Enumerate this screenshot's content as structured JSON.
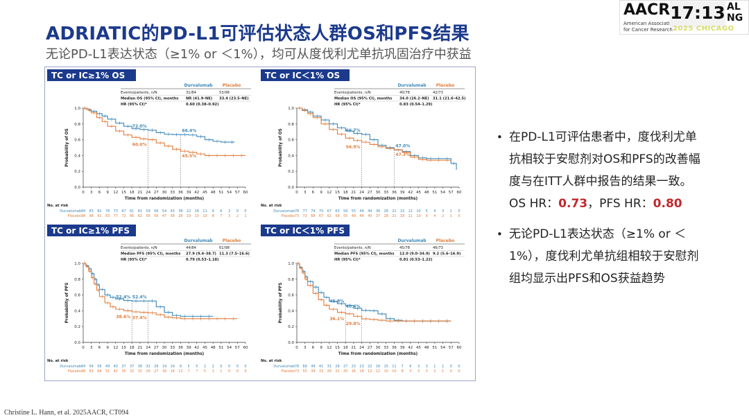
{
  "header": {
    "title": "ADRIATIC的PD-L1可评估状态人群OS和PFS结果",
    "subtitle": "无论PD-L1表达状态（≥1% or ＜1%），均可从度伐利尤单抗巩固治疗中获益"
  },
  "logo": {
    "brand": "AACR",
    "line1": "American Association",
    "line2": "for Cancer Research",
    "alng": "AL\nNG",
    "year": "2025 CHICAGO",
    "clock": "17:13"
  },
  "colors": {
    "durvalumab": "#3a86b8",
    "placebo": "#e07b39",
    "title": "#1b3a8c",
    "highlight": "#c0282d"
  },
  "chart_data": [
    {
      "type": "line",
      "title": "TC or IC≥1% OS",
      "xlabel": "Time from randomization (months)",
      "ylabel": "Probability of OS",
      "xlim": [
        0,
        60
      ],
      "ylim": [
        0,
        1.0
      ],
      "xticks": [
        0,
        3,
        6,
        9,
        12,
        15,
        18,
        21,
        24,
        27,
        30,
        33,
        36,
        39,
        42,
        45,
        48,
        51,
        54,
        57,
        60
      ],
      "yticks": [
        0,
        0.2,
        0.4,
        0.6,
        0.8,
        1.0
      ],
      "table": {
        "head": [
          "",
          "Durvalumab",
          "Placebo"
        ],
        "rows": [
          [
            "Events/patients, n/N",
            "31/84",
            "53/98"
          ],
          [
            "Median OS (95% CI), months",
            "NR (41.9–NE)",
            "33.4 (23.5–NE)"
          ],
          [
            "HR (95% CI)*",
            "0.60 (0.38–0.92)",
            ""
          ]
        ]
      },
      "annotations": [
        {
          "text": "72.0%",
          "x": 24,
          "y": 0.72,
          "series": "Durvalumab"
        },
        {
          "text": "66.4%",
          "x": 36,
          "y": 0.664,
          "series": "Durvalumab"
        },
        {
          "text": "60.0%",
          "x": 24,
          "y": 0.6,
          "series": "Placebo"
        },
        {
          "text": "45.5%",
          "x": 36,
          "y": 0.455,
          "series": "Placebo"
        }
      ],
      "series": [
        {
          "name": "Durvalumab",
          "x": [
            0,
            1,
            2,
            3,
            5,
            7,
            9,
            12,
            15,
            18,
            21,
            24,
            27,
            30,
            33,
            36,
            39,
            42,
            45,
            48,
            51,
            54,
            56
          ],
          "y": [
            1.0,
            0.99,
            0.98,
            0.96,
            0.93,
            0.9,
            0.86,
            0.81,
            0.77,
            0.74,
            0.73,
            0.72,
            0.69,
            0.67,
            0.665,
            0.664,
            0.66,
            0.64,
            0.6,
            0.58,
            0.57,
            0.57,
            0.57
          ]
        },
        {
          "name": "Placebo",
          "x": [
            0,
            1,
            2,
            3,
            5,
            7,
            9,
            12,
            15,
            18,
            21,
            24,
            27,
            30,
            33,
            36,
            39,
            42,
            45,
            48,
            51,
            54,
            57,
            60
          ],
          "y": [
            1.0,
            0.99,
            0.97,
            0.94,
            0.88,
            0.83,
            0.77,
            0.71,
            0.66,
            0.63,
            0.61,
            0.6,
            0.56,
            0.52,
            0.48,
            0.455,
            0.44,
            0.42,
            0.4,
            0.4,
            0.4,
            0.4,
            0.4,
            0.4
          ]
        }
      ],
      "risk": {
        "label": "No. at risk",
        "rows": [
          {
            "name": "Durvalumab",
            "values": [
              84,
              83,
              82,
              76,
              73,
              67,
              61,
              61,
              59,
              56,
              54,
              43,
              38,
              22,
              16,
              11,
              9,
              6,
              2,
              0,
              0
            ]
          },
          {
            "name": "Placebo",
            "values": [
              98,
              96,
              91,
              83,
              77,
              72,
              66,
              62,
              56,
              56,
              47,
              38,
              28,
              19,
              13,
              10,
              8,
              7,
              3,
              2,
              1
            ]
          }
        ]
      }
    },
    {
      "type": "line",
      "title": "TC or IC＜1% OS",
      "xlabel": "Time from randomization (months)",
      "ylabel": "Probability of OS",
      "xlim": [
        0,
        60
      ],
      "ylim": [
        0,
        1.0
      ],
      "xticks": [
        0,
        3,
        6,
        9,
        12,
        15,
        18,
        21,
        24,
        27,
        30,
        33,
        36,
        39,
        42,
        45,
        48,
        51,
        54,
        57,
        60
      ],
      "yticks": [
        0,
        0.2,
        0.4,
        0.6,
        0.8,
        1.0
      ],
      "table": {
        "head": [
          "",
          "Durvalumab",
          "Placebo"
        ],
        "rows": [
          [
            "Events/patients, n/N",
            "40/78",
            "42/73"
          ],
          [
            "Median OS (95% CI), months",
            "34.0 (26.2–NE)",
            "31.1 (21.6–42.5)"
          ],
          [
            "HR (95% CI)*",
            "0.83 (0.54–1.29)",
            ""
          ]
        ]
      },
      "annotations": [
        {
          "text": "66.7%",
          "x": 24,
          "y": 0.667,
          "series": "Durvalumab"
        },
        {
          "text": "47.0%",
          "x": 36,
          "y": 0.47,
          "series": "Durvalumab"
        },
        {
          "text": "56.9%",
          "x": 24,
          "y": 0.569,
          "series": "Placebo"
        },
        {
          "text": "47.3%",
          "x": 36,
          "y": 0.473,
          "series": "Placebo"
        }
      ],
      "series": [
        {
          "name": "Durvalumab",
          "x": [
            0,
            2,
            4,
            6,
            9,
            12,
            15,
            18,
            21,
            24,
            27,
            30,
            33,
            36,
            39,
            42,
            45,
            48,
            51,
            54,
            57,
            59
          ],
          "y": [
            1.0,
            0.98,
            0.95,
            0.9,
            0.85,
            0.8,
            0.75,
            0.71,
            0.68,
            0.667,
            0.6,
            0.53,
            0.5,
            0.47,
            0.45,
            0.4,
            0.37,
            0.36,
            0.36,
            0.36,
            0.3,
            0.22
          ]
        },
        {
          "name": "Placebo",
          "x": [
            0,
            2,
            4,
            6,
            9,
            12,
            15,
            18,
            21,
            24,
            27,
            30,
            33,
            36,
            39,
            42,
            45,
            48,
            51,
            54,
            57
          ],
          "y": [
            1.0,
            0.97,
            0.93,
            0.88,
            0.8,
            0.73,
            0.67,
            0.62,
            0.59,
            0.569,
            0.54,
            0.51,
            0.49,
            0.473,
            0.44,
            0.38,
            0.35,
            0.34,
            0.34,
            0.34,
            0.34
          ]
        }
      ],
      "risk": {
        "label": "No. at risk",
        "rows": [
          {
            "name": "Durvalumab",
            "values": [
              78,
              77,
              74,
              70,
              67,
              63,
              59,
              55,
              49,
              44,
              36,
              28,
              21,
              15,
              12,
              10,
              5,
              4,
              3,
              1,
              0
            ]
          },
          {
            "name": "Placebo",
            "values": [
              73,
              72,
              68,
              67,
              62,
              59,
              55,
              49,
              46,
              40,
              37,
              28,
              21,
              18,
              11,
              10,
              9,
              4,
              2,
              1,
              0
            ]
          }
        ]
      }
    },
    {
      "type": "line",
      "title": "TC or IC≥1% PFS",
      "xlabel": "Time from randomization (months)",
      "ylabel": "Probability of PFS",
      "xlim": [
        0,
        60
      ],
      "ylim": [
        0,
        1.0
      ],
      "xticks": [
        0,
        3,
        6,
        9,
        12,
        15,
        18,
        21,
        24,
        27,
        30,
        33,
        36,
        39,
        42,
        45,
        48,
        51,
        54,
        57,
        60
      ],
      "yticks": [
        0,
        0.2,
        0.4,
        0.6,
        0.8,
        1.0
      ],
      "table": {
        "head": [
          "",
          "Durvalumab",
          "Placebo"
        ],
        "rows": [
          [
            "Events/patients, n/N",
            "44/84",
            "61/98"
          ],
          [
            "Median PFS (95% CI), months",
            "27.9 (9.4–38.7)",
            "11.3 (7.5–16.6)"
          ],
          [
            "HR (95% CI)*",
            "0.79 (0.53–1.18)",
            ""
          ]
        ]
      },
      "annotations": [
        {
          "text": "52.4%",
          "x": 18,
          "y": 0.524,
          "series": "Durvalumab"
        },
        {
          "text": "52.4%",
          "x": 24,
          "y": 0.524,
          "series": "Durvalumab"
        },
        {
          "text": "38.6%",
          "x": 18,
          "y": 0.386,
          "series": "Placebo"
        },
        {
          "text": "37.4%",
          "x": 24,
          "y": 0.374,
          "series": "Placebo"
        }
      ],
      "series": [
        {
          "name": "Durvalumab",
          "x": [
            0,
            1,
            2,
            3,
            4,
            5,
            6,
            8,
            10,
            12,
            15,
            18,
            21,
            24,
            27,
            30,
            33,
            36,
            39,
            42,
            45,
            48
          ],
          "y": [
            1.0,
            0.97,
            0.93,
            0.87,
            0.8,
            0.73,
            0.67,
            0.6,
            0.57,
            0.55,
            0.53,
            0.524,
            0.524,
            0.524,
            0.45,
            0.38,
            0.34,
            0.33,
            0.33,
            0.33,
            0.33,
            0.33
          ]
        },
        {
          "name": "Placebo",
          "x": [
            0,
            1,
            2,
            3,
            4,
            5,
            6,
            8,
            10,
            12,
            15,
            18,
            21,
            24,
            27,
            30,
            33,
            36,
            39,
            42,
            45,
            48,
            51,
            54,
            57
          ],
          "y": [
            1.0,
            0.96,
            0.9,
            0.82,
            0.74,
            0.66,
            0.58,
            0.5,
            0.45,
            0.42,
            0.4,
            0.386,
            0.38,
            0.374,
            0.35,
            0.32,
            0.31,
            0.3,
            0.3,
            0.3,
            0.3,
            0.3,
            0.3,
            0.3,
            0.3
          ]
        }
      ],
      "risk": {
        "label": "No. at risk",
        "rows": [
          {
            "name": "Durvalumab",
            "values": [
              84,
              56,
              56,
              49,
              40,
              37,
              37,
              36,
              32,
              29,
              19,
              19,
              9,
              5,
              5,
              2,
              2,
              0,
              0,
              0,
              0
            ]
          },
          {
            "name": "Placebo",
            "values": [
              98,
              81,
              64,
              51,
              42,
              35,
              32,
              31,
              26,
              27,
              16,
              16,
              12,
              7,
              7,
              5,
              1,
              1,
              0,
              0,
              0
            ]
          }
        ]
      }
    },
    {
      "type": "line",
      "title": "TC or IC＜1% PFS",
      "xlabel": "Time from randomization (months)",
      "ylabel": "Probability of PFS",
      "xlim": [
        0,
        60
      ],
      "ylim": [
        0,
        1.0
      ],
      "xticks": [
        0,
        3,
        6,
        9,
        12,
        15,
        18,
        21,
        24,
        27,
        30,
        33,
        36,
        39,
        42,
        45,
        48,
        51,
        54,
        57,
        60
      ],
      "yticks": [
        0,
        0.2,
        0.4,
        0.6,
        0.8,
        1.0
      ],
      "table": {
        "head": [
          "",
          "Durvalumab",
          "Placebo"
        ],
        "rows": [
          [
            "Events/patients, n/N",
            "45/78",
            "46/73"
          ],
          [
            "Median PFS (95% CI), months",
            "12.0 (9.0–34.9)",
            "9.2 (5.6–16.9)"
          ],
          [
            "HR (95% CI)*",
            "0.81 (0.53–1.22)",
            ""
          ]
        ]
      },
      "annotations": [
        {
          "text": "46.8%",
          "x": 18,
          "y": 0.468,
          "series": "Durvalumab"
        },
        {
          "text": "40.4%",
          "x": 24,
          "y": 0.404,
          "series": "Durvalumab"
        },
        {
          "text": "36.1%",
          "x": 18,
          "y": 0.361,
          "series": "Placebo"
        },
        {
          "text": "29.8%",
          "x": 24,
          "y": 0.298,
          "series": "Placebo"
        }
      ],
      "series": [
        {
          "name": "Durvalumab",
          "x": [
            0,
            1,
            2,
            3,
            4,
            6,
            8,
            10,
            12,
            15,
            18,
            21,
            24,
            27,
            30,
            33,
            36,
            39,
            42,
            45,
            48,
            51,
            54,
            57
          ],
          "y": [
            1.0,
            0.95,
            0.9,
            0.83,
            0.77,
            0.7,
            0.63,
            0.57,
            0.52,
            0.49,
            0.468,
            0.43,
            0.404,
            0.4,
            0.36,
            0.3,
            0.28,
            0.27,
            0.27,
            0.27,
            0.27,
            0.27,
            0.27,
            0.27
          ]
        },
        {
          "name": "Placebo",
          "x": [
            0,
            1,
            2,
            3,
            4,
            6,
            8,
            10,
            12,
            15,
            18,
            21,
            24,
            27,
            30,
            33,
            36,
            39,
            42,
            45,
            48,
            51,
            54,
            57
          ],
          "y": [
            1.0,
            0.94,
            0.88,
            0.8,
            0.72,
            0.62,
            0.54,
            0.47,
            0.42,
            0.38,
            0.361,
            0.33,
            0.298,
            0.29,
            0.28,
            0.27,
            0.27,
            0.27,
            0.27,
            0.27,
            0.27,
            0.27,
            0.27,
            0.27
          ]
        }
      ],
      "risk": {
        "label": "No. at risk",
        "rows": [
          {
            "name": "Durvalumab",
            "values": [
              78,
              69,
              49,
              41,
              31,
              29,
              27,
              23,
              23,
              22,
              16,
              15,
              11,
              7,
              6,
              3,
              3,
              1,
              1,
              0,
              0
            ]
          },
          {
            "name": "Placebo",
            "values": [
              73,
              55,
              39,
              33,
              26,
              23,
              20,
              16,
              16,
              12,
              12,
              10,
              10,
              8,
              3,
              3,
              3,
              2,
              1,
              0,
              0
            ]
          }
        ]
      }
    }
  ],
  "bullets": [
    {
      "before": "在PD-L1可评估患者中，度伐利尤单抗相较于安慰剂对OS和PFS的改善幅度与在ITT人群中报告的结果一致。OS HR：",
      "hr1": "0.73",
      "middle": "，PFS HR：",
      "hr2": "0.80"
    },
    {
      "text": "无论PD-L1表达状态（≥1% or ＜1%），度伐利尤单抗组相较于安慰剂组均显示出PFS和OS获益趋势"
    }
  ],
  "citation": "Christine L. Hann, et al. 2025AACR, CT094"
}
